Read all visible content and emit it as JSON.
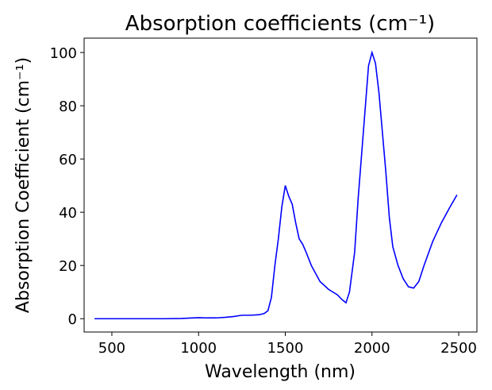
{
  "chart_data": {
    "type": "line",
    "title": "Absorption coefficients (cm⁻¹)",
    "x_label": "Wavelength (nm)",
    "y_label": "Absorption Coefficient (cm⁻¹)",
    "x": [
      400,
      500,
      600,
      700,
      800,
      900,
      1000,
      1050,
      1100,
      1150,
      1200,
      1250,
      1300,
      1350,
      1380,
      1400,
      1420,
      1440,
      1460,
      1480,
      1500,
      1520,
      1540,
      1560,
      1580,
      1600,
      1620,
      1650,
      1700,
      1750,
      1800,
      1830,
      1850,
      1870,
      1900,
      1920,
      1950,
      1980,
      2000,
      2020,
      2040,
      2060,
      2080,
      2100,
      2120,
      2150,
      2180,
      2210,
      2240,
      2270,
      2300,
      2350,
      2400,
      2450,
      2490
    ],
    "series": [
      {
        "color": "#0000ff",
        "values": [
          0,
          0,
          0,
          0,
          0,
          0.1,
          0.4,
          0.3,
          0.3,
          0.5,
          0.8,
          1.3,
          1.3,
          1.5,
          2,
          3,
          8,
          20,
          30,
          42,
          50,
          46,
          43,
          36,
          30,
          28,
          25,
          20,
          14,
          11,
          9,
          7,
          6,
          10,
          25,
          45,
          70,
          95,
          100,
          96,
          85,
          70,
          55,
          38,
          27,
          20,
          15,
          12,
          11.5,
          14,
          20,
          29,
          36,
          42,
          46.5
        ]
      }
    ],
    "xlim": [
      340,
      2605
    ],
    "ylim": [
      -5,
      105.4
    ],
    "xticks": [
      500,
      1000,
      1500,
      2000,
      2500
    ],
    "yticks": [
      0,
      20,
      40,
      60,
      80,
      100
    ],
    "grid": false
  }
}
